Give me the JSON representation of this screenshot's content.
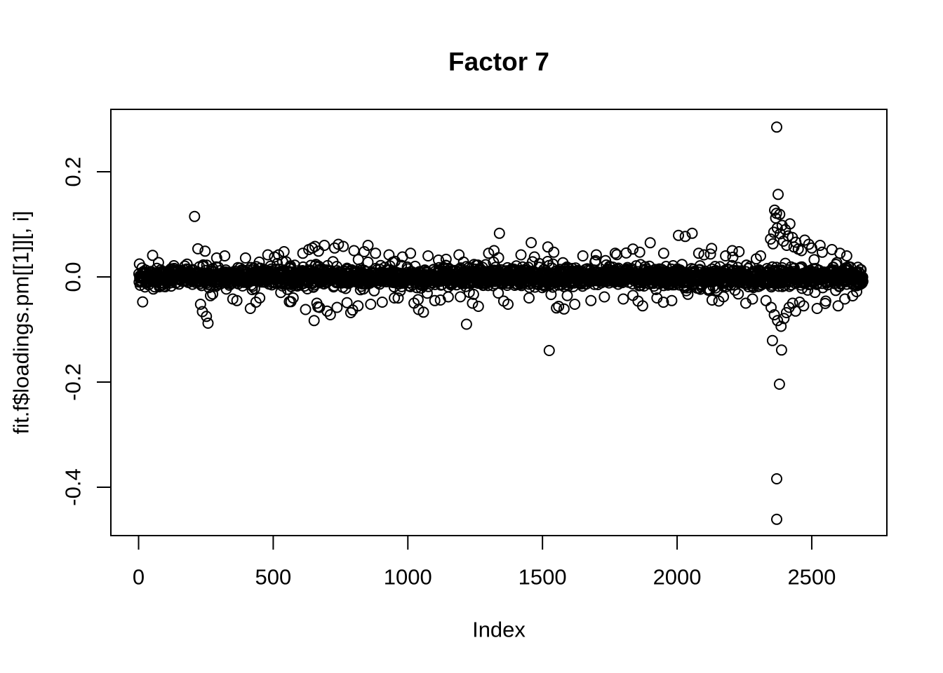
{
  "figure": {
    "background": "#ffffff",
    "foreground": "#000000"
  },
  "chart_data": {
    "type": "scatter",
    "title": "Factor 7",
    "xlabel": "Index",
    "ylabel": "fit.f$loadings.pm[[1]][, i]",
    "x_ticks": [
      0,
      500,
      1000,
      1500,
      2000,
      2500
    ],
    "x_tick_labels": [
      "0",
      "500",
      "1000",
      "1500",
      "2000",
      "2500"
    ],
    "y_ticks": [
      -0.4,
      -0.2,
      0.0,
      0.2
    ],
    "y_tick_labels": [
      "-0.4",
      "-0.2",
      "0.0",
      "0.2"
    ],
    "xlim": [
      -103,
      2779
    ],
    "ylim": [
      -0.492,
      0.3187
    ],
    "grid": false,
    "legend": null,
    "marker": {
      "shape": "open-circle",
      "radius_px": 7,
      "stroke_px": 2,
      "color": "#000000"
    },
    "n_points": 2690,
    "band": {
      "mean": 0,
      "sd_core": 0.0085,
      "sd_wide": 0.022,
      "wide_fraction": 0.1,
      "clip": 0.09
    },
    "outliers": [
      [
        208,
        0.115
      ],
      [
        247,
        0.049
      ],
      [
        230,
        -0.052
      ],
      [
        237,
        -0.066
      ],
      [
        252,
        -0.075
      ],
      [
        258,
        -0.088
      ],
      [
        290,
        0.036
      ],
      [
        320,
        0.04
      ],
      [
        350,
        -0.042
      ],
      [
        365,
        -0.045
      ],
      [
        397,
        0.036
      ],
      [
        415,
        -0.06
      ],
      [
        436,
        -0.048
      ],
      [
        450,
        -0.04
      ],
      [
        480,
        0.042
      ],
      [
        505,
        0.038
      ],
      [
        520,
        0.042
      ],
      [
        535,
        0.029
      ],
      [
        540,
        0.048
      ],
      [
        560,
        -0.047
      ],
      [
        566,
        -0.047
      ],
      [
        574,
        -0.04
      ],
      [
        610,
        0.045
      ],
      [
        620,
        -0.062
      ],
      [
        632,
        0.052
      ],
      [
        645,
        0.055
      ],
      [
        652,
        -0.083
      ],
      [
        655,
        0.058
      ],
      [
        662,
        -0.05
      ],
      [
        666,
        -0.057
      ],
      [
        668,
        0.049
      ],
      [
        672,
        -0.058
      ],
      [
        690,
        0.06
      ],
      [
        700,
        -0.065
      ],
      [
        712,
        -0.072
      ],
      [
        728,
        0.055
      ],
      [
        737,
        -0.058
      ],
      [
        742,
        0.062
      ],
      [
        760,
        0.058
      ],
      [
        774,
        -0.049
      ],
      [
        788,
        -0.068
      ],
      [
        795,
        -0.063
      ],
      [
        800,
        0.05
      ],
      [
        815,
        -0.055
      ],
      [
        838,
        0.048
      ],
      [
        852,
        0.06
      ],
      [
        862,
        -0.052
      ],
      [
        880,
        0.045
      ],
      [
        905,
        -0.048
      ],
      [
        930,
        0.042
      ],
      [
        950,
        -0.04
      ],
      [
        980,
        0.038
      ],
      [
        1010,
        0.045
      ],
      [
        1040,
        -0.062
      ],
      [
        1058,
        -0.067
      ],
      [
        1075,
        0.04
      ],
      [
        1100,
        -0.045
      ],
      [
        1121,
        -0.044
      ],
      [
        1150,
        -0.038
      ],
      [
        1190,
        0.042
      ],
      [
        1218,
        -0.09
      ],
      [
        1240,
        -0.05
      ],
      [
        1262,
        -0.056
      ],
      [
        1300,
        0.045
      ],
      [
        1320,
        0.05
      ],
      [
        1340,
        0.083
      ],
      [
        1356,
        -0.046
      ],
      [
        1372,
        -0.052
      ],
      [
        1420,
        0.042
      ],
      [
        1450,
        -0.04
      ],
      [
        1470,
        0.038
      ],
      [
        1520,
        0.057
      ],
      [
        1525,
        -0.14
      ],
      [
        1542,
        0.047
      ],
      [
        1560,
        -0.056
      ],
      [
        1580,
        -0.061
      ],
      [
        1620,
        -0.052
      ],
      [
        1650,
        0.04
      ],
      [
        1680,
        -0.045
      ],
      [
        1700,
        0.042
      ],
      [
        1730,
        -0.038
      ],
      [
        1770,
        0.045
      ],
      [
        1800,
        -0.042
      ],
      [
        1836,
        0.053
      ],
      [
        1855,
        -0.046
      ],
      [
        1872,
        -0.055
      ],
      [
        1900,
        0.065
      ],
      [
        1925,
        -0.04
      ],
      [
        1950,
        0.045
      ],
      [
        1980,
        -0.045
      ],
      [
        2005,
        0.079
      ],
      [
        2030,
        0.077
      ],
      [
        2056,
        0.083
      ],
      [
        2080,
        0.045
      ],
      [
        2100,
        0.042
      ],
      [
        2130,
        -0.044
      ],
      [
        2155,
        -0.046
      ],
      [
        2180,
        0.04
      ],
      [
        2205,
        0.05
      ],
      [
        2230,
        0.048
      ],
      [
        2255,
        -0.05
      ],
      [
        2280,
        -0.042
      ],
      [
        2310,
        0.04
      ],
      [
        2330,
        -0.045
      ],
      [
        2370,
        0.285
      ],
      [
        2375,
        0.157
      ],
      [
        2362,
        0.127
      ],
      [
        2369,
        0.121
      ],
      [
        2381,
        0.119
      ],
      [
        2366,
        0.112
      ],
      [
        2390,
        0.098
      ],
      [
        2402,
        0.09
      ],
      [
        2419,
        0.101
      ],
      [
        2347,
        0.072
      ],
      [
        2356,
        0.063
      ],
      [
        2359,
        0.085
      ],
      [
        2372,
        0.093
      ],
      [
        2383,
        0.082
      ],
      [
        2395,
        0.068
      ],
      [
        2407,
        0.06
      ],
      [
        2412,
        0.078
      ],
      [
        2428,
        0.075
      ],
      [
        2434,
        0.057
      ],
      [
        2441,
        0.066
      ],
      [
        2349,
        -0.058
      ],
      [
        2354,
        -0.121
      ],
      [
        2361,
        -0.072
      ],
      [
        2370,
        -0.461
      ],
      [
        2370,
        -0.384
      ],
      [
        2373,
        -0.083
      ],
      [
        2380,
        -0.204
      ],
      [
        2386,
        -0.094
      ],
      [
        2388,
        -0.139
      ],
      [
        2397,
        -0.079
      ],
      [
        2406,
        -0.068
      ],
      [
        2416,
        -0.058
      ],
      [
        2429,
        -0.05
      ],
      [
        2440,
        -0.065
      ],
      [
        2455,
        -0.048
      ],
      [
        2450,
        0.053
      ],
      [
        2462,
        0.05
      ],
      [
        2474,
        0.07
      ],
      [
        2489,
        0.062
      ],
      [
        2500,
        0.055
      ],
      [
        2531,
        0.06
      ],
      [
        2539,
        0.047
      ],
      [
        2575,
        0.052
      ],
      [
        2605,
        0.045
      ],
      [
        2630,
        0.04
      ],
      [
        2470,
        -0.055
      ],
      [
        2520,
        -0.06
      ],
      [
        2552,
        -0.046
      ],
      [
        2598,
        -0.055
      ],
      [
        2623,
        -0.042
      ],
      [
        2652,
        -0.036
      ],
      [
        2667,
        -0.028
      ]
    ]
  }
}
